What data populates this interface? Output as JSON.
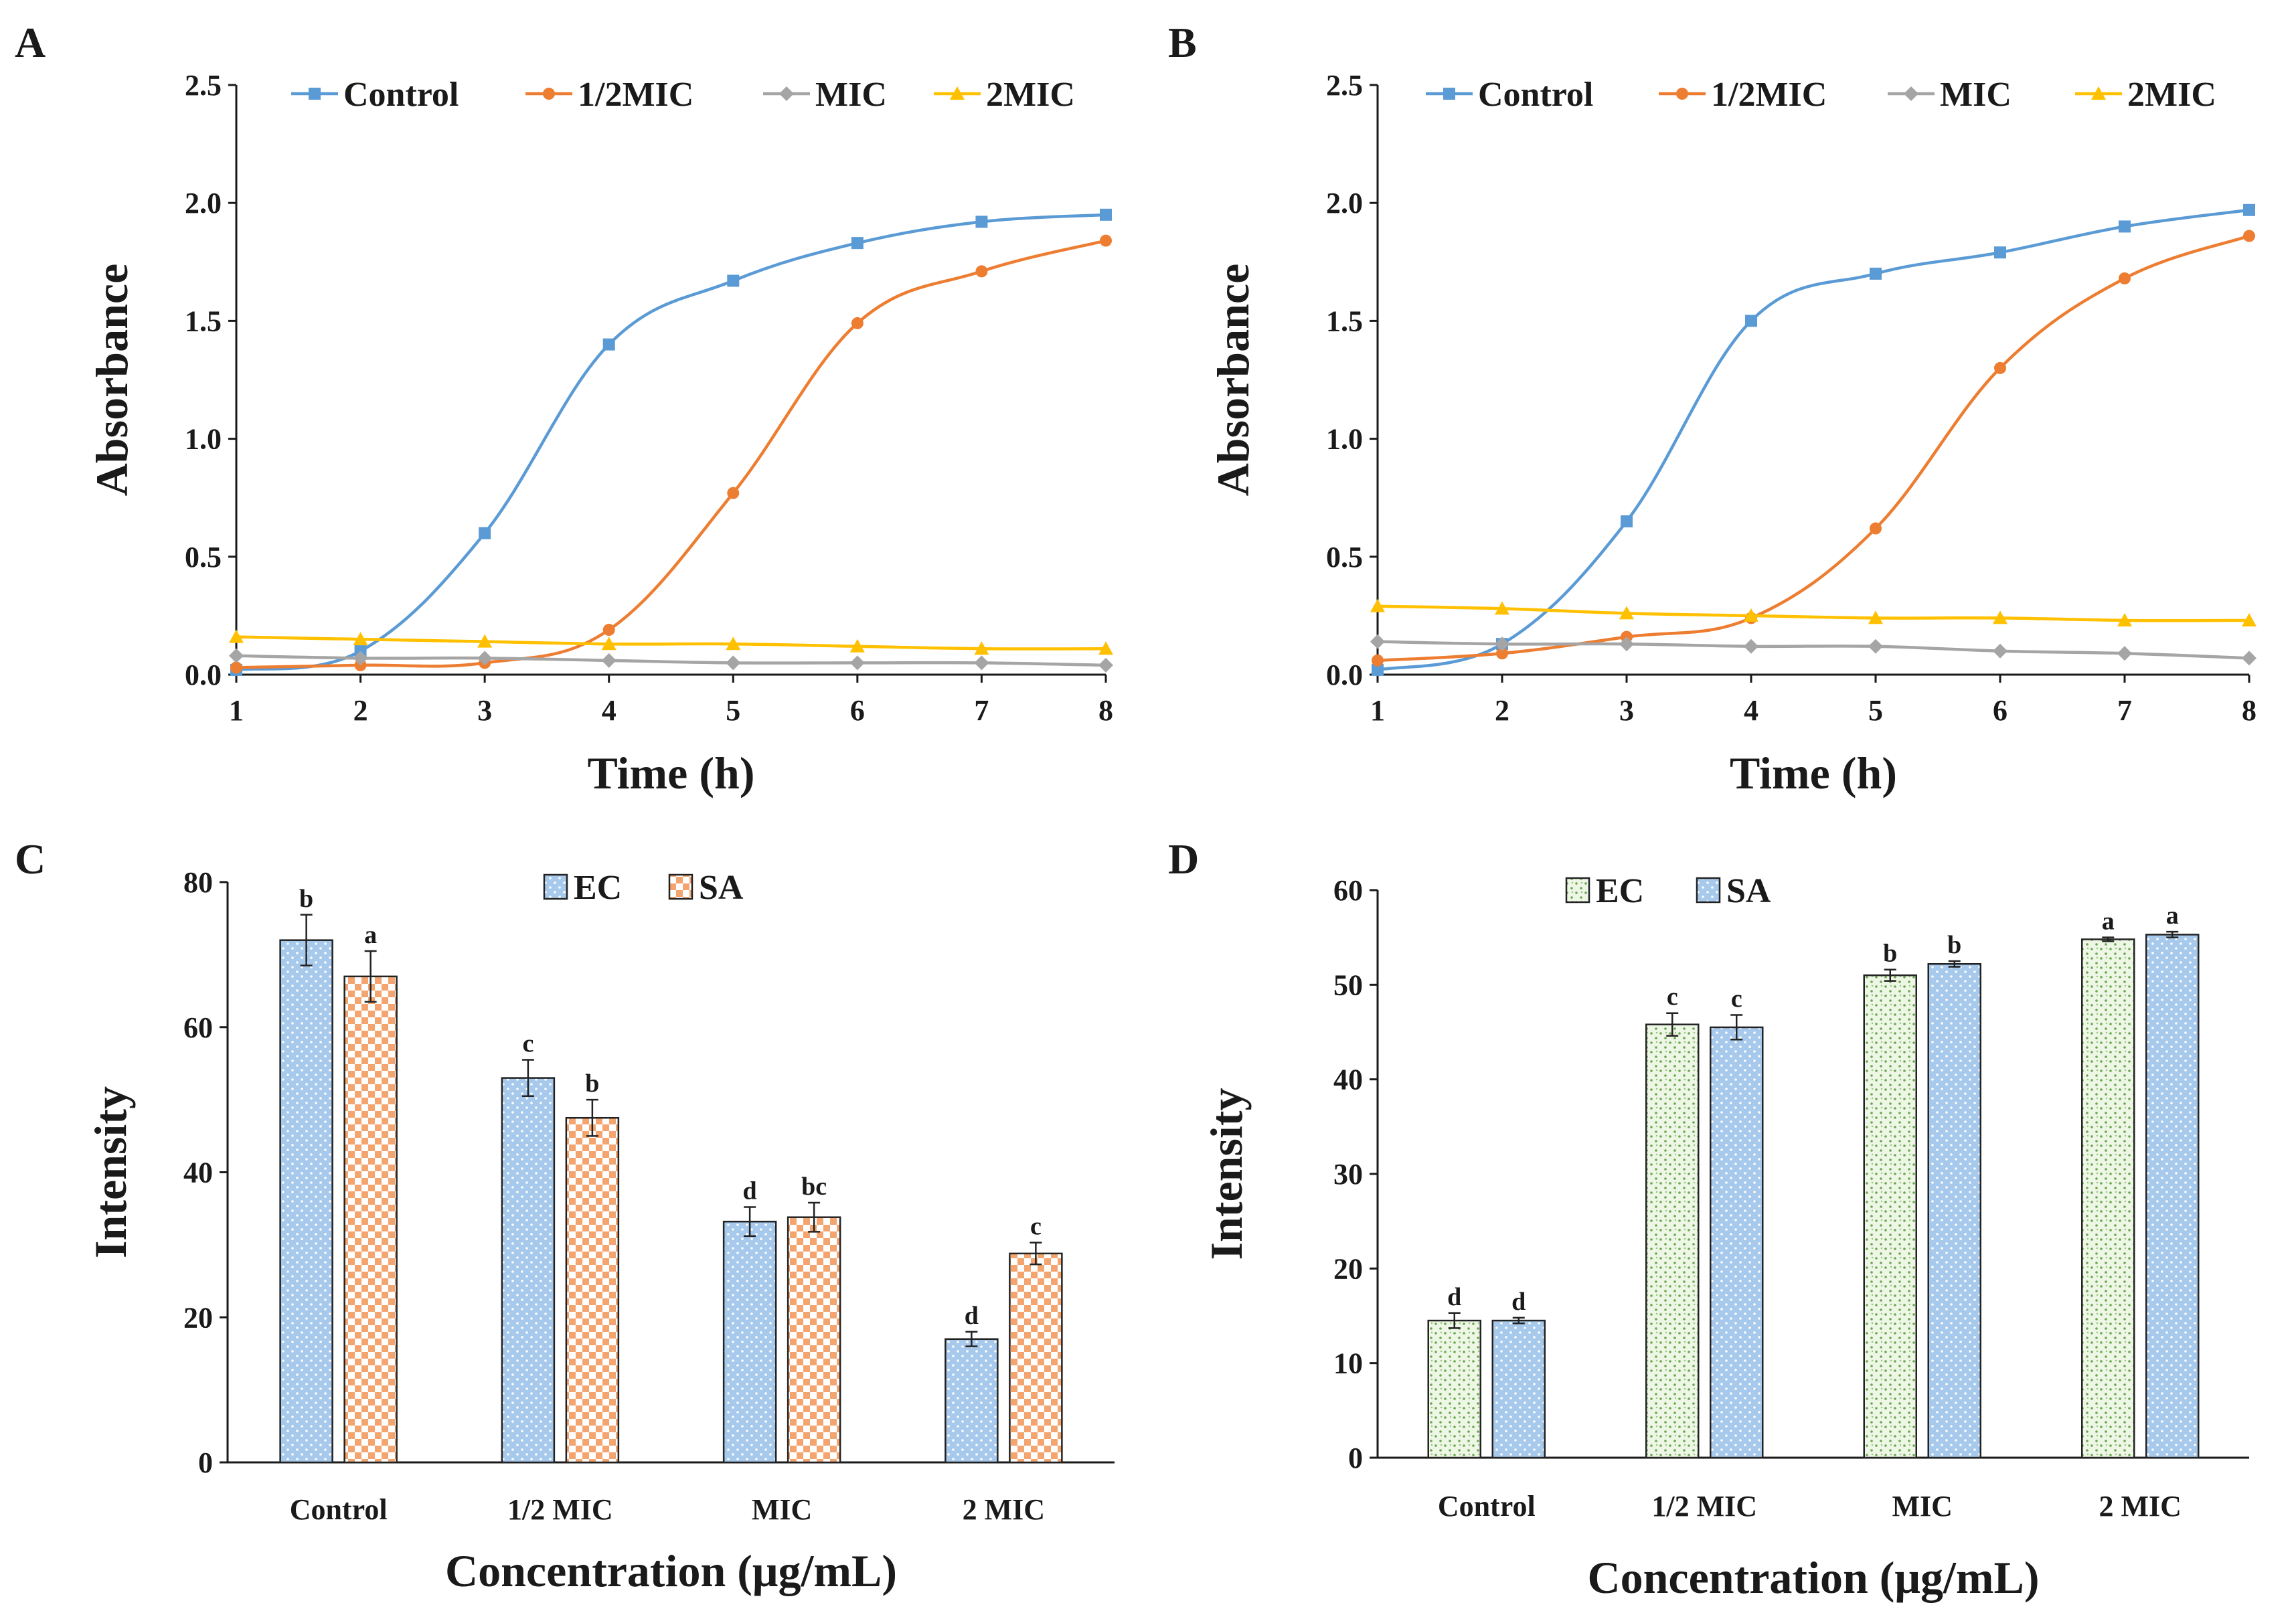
{
  "colors": {
    "control": "#5b9bd5",
    "half_mic": "#ed7d31",
    "mic": "#a5a5a5",
    "two_mic": "#ffc000",
    "axis": "#1a1a1a",
    "bar_blue_fill": "#a7c9ec",
    "bar_orange_fill": "#f4a46e",
    "bar_green_fill": "#e3f0d6"
  },
  "chart_data": [
    {
      "panel": "A",
      "type": "line",
      "xlabel": "Time (h)",
      "ylabel": "Absorbance",
      "xlim": [
        1,
        8
      ],
      "ylim": [
        0,
        2.5
      ],
      "x_ticks": [
        "1",
        "2",
        "3",
        "4",
        "5",
        "6",
        "7",
        "8"
      ],
      "y_ticks": [
        "0.0",
        "0.5",
        "1.0",
        "1.5",
        "2.0",
        "2.5"
      ],
      "x": [
        1,
        2,
        3,
        4,
        5,
        6,
        7,
        8
      ],
      "series": [
        {
          "name": "Control",
          "color_key": "control",
          "marker": "square",
          "values": [
            0.02,
            0.1,
            0.6,
            1.4,
            1.67,
            1.83,
            1.92,
            1.95
          ]
        },
        {
          "name": "1/2MIC",
          "color_key": "half_mic",
          "marker": "circle",
          "values": [
            0.03,
            0.04,
            0.05,
            0.19,
            0.77,
            1.49,
            1.71,
            1.84
          ]
        },
        {
          "name": "MIC",
          "color_key": "mic",
          "marker": "diamond",
          "values": [
            0.08,
            0.07,
            0.07,
            0.06,
            0.05,
            0.05,
            0.05,
            0.04
          ]
        },
        {
          "name": "2MIC",
          "color_key": "two_mic",
          "marker": "triangle",
          "values": [
            0.16,
            0.15,
            0.14,
            0.13,
            0.13,
            0.12,
            0.11,
            0.11
          ]
        }
      ]
    },
    {
      "panel": "B",
      "type": "line",
      "xlabel": "Time (h)",
      "ylabel": "Absorbance",
      "xlim": [
        1,
        8
      ],
      "ylim": [
        0,
        2.5
      ],
      "x_ticks": [
        "1",
        "2",
        "3",
        "4",
        "5",
        "6",
        "7",
        "8"
      ],
      "y_ticks": [
        "0.0",
        "0.5",
        "1.0",
        "1.5",
        "2.0",
        "2.5"
      ],
      "x": [
        1,
        2,
        3,
        4,
        5,
        6,
        7,
        8
      ],
      "series": [
        {
          "name": "Control",
          "color_key": "control",
          "marker": "square",
          "values": [
            0.02,
            0.13,
            0.65,
            1.5,
            1.7,
            1.79,
            1.9,
            1.97
          ]
        },
        {
          "name": "1/2MIC",
          "color_key": "half_mic",
          "marker": "circle",
          "values": [
            0.06,
            0.09,
            0.16,
            0.24,
            0.62,
            1.3,
            1.68,
            1.86
          ]
        },
        {
          "name": "MIC",
          "color_key": "mic",
          "marker": "diamond",
          "values": [
            0.14,
            0.13,
            0.13,
            0.12,
            0.12,
            0.1,
            0.09,
            0.07
          ]
        },
        {
          "name": "2MIC",
          "color_key": "two_mic",
          "marker": "triangle",
          "values": [
            0.29,
            0.28,
            0.26,
            0.25,
            0.24,
            0.24,
            0.23,
            0.23
          ]
        }
      ]
    },
    {
      "panel": "C",
      "type": "bar",
      "xlabel": "Concentration (μg/mL)",
      "ylabel": "Intensity",
      "ylim": [
        0,
        80
      ],
      "y_ticks": [
        "0",
        "20",
        "40",
        "60",
        "80"
      ],
      "categories": [
        "Control",
        "1/2 MIC",
        "MIC",
        "2 MIC"
      ],
      "series": [
        {
          "name": "EC",
          "fill_key": "bar_blue_fill",
          "pattern": "dots",
          "values": [
            72,
            53,
            33.2,
            17
          ],
          "errors": [
            3.5,
            2.5,
            2.0,
            1.0
          ],
          "labels": [
            "b",
            "c",
            "d",
            "d"
          ]
        },
        {
          "name": "SA",
          "fill_key": "bar_orange_fill",
          "pattern": "checker",
          "values": [
            67,
            47.5,
            33.8,
            28.8
          ],
          "errors": [
            3.5,
            2.5,
            2.0,
            1.5
          ],
          "labels": [
            "a",
            "b",
            "bc",
            "c"
          ]
        }
      ]
    },
    {
      "panel": "D",
      "type": "bar",
      "xlabel": "Concentration (μg/mL)",
      "ylabel": "Intensity",
      "ylim": [
        0,
        60
      ],
      "y_ticks": [
        "0",
        "10",
        "20",
        "30",
        "40",
        "50",
        "60"
      ],
      "categories": [
        "Control",
        "1/2 MIC",
        "MIC",
        "2 MIC"
      ],
      "series": [
        {
          "name": "EC",
          "fill_key": "bar_green_fill",
          "pattern": "speckle",
          "values": [
            14.5,
            45.8,
            51,
            54.8
          ],
          "errors": [
            0.8,
            1.2,
            0.6,
            0.2
          ],
          "labels": [
            "d",
            "c",
            "b",
            "a"
          ]
        },
        {
          "name": "SA",
          "fill_key": "bar_blue_fill",
          "pattern": "dots",
          "values": [
            14.5,
            45.5,
            52.2,
            55.3
          ],
          "errors": [
            0.3,
            1.3,
            0.3,
            0.3
          ],
          "labels": [
            "d",
            "c",
            "b",
            "a"
          ]
        }
      ]
    }
  ]
}
